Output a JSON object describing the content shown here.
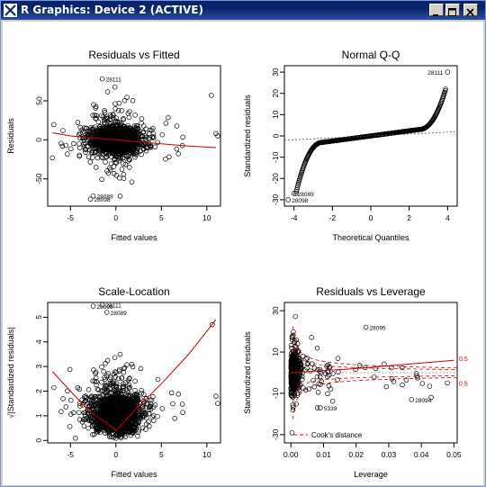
{
  "window": {
    "title": "R Graphics: Device 2 (ACTIVE)",
    "controls": [
      "minimize",
      "maximize",
      "close"
    ]
  },
  "chart_data": [
    {
      "type": "scatter",
      "title": "Residuals vs Fitted",
      "xlabel": "Fitted values",
      "ylabel": "Residuals",
      "xlim": [
        -7.5,
        11.5
      ],
      "ylim": [
        -85,
        95
      ],
      "xticks": [
        -5,
        0,
        5,
        10
      ],
      "yticks": [
        -50,
        0,
        50
      ],
      "smoother": [
        [
          -7,
          9
        ],
        [
          -5,
          5
        ],
        [
          -2,
          2
        ],
        [
          0,
          0
        ],
        [
          2,
          -2
        ],
        [
          5,
          -5
        ],
        [
          8,
          -8
        ],
        [
          11,
          -10
        ]
      ],
      "labeled_points": [
        {
          "label": "28111",
          "x": -1.5,
          "y": 78
        },
        {
          "label": "28089",
          "x": -2.5,
          "y": -72
        },
        {
          "label": "28098",
          "x": -2.8,
          "y": -76
        }
      ]
    },
    {
      "type": "scatter",
      "title": "Normal Q-Q",
      "xlabel": "Theoretical Quantiles",
      "ylabel": "Standardized residuals",
      "xlim": [
        -4.5,
        4.5
      ],
      "ylim": [
        -33,
        33
      ],
      "xticks": [
        -4,
        -2,
        0,
        2,
        4
      ],
      "yticks": [
        -30,
        -20,
        -10,
        0,
        10,
        20,
        30
      ],
      "reference_line": [
        [
          -4.5,
          -2
        ],
        [
          4.5,
          2
        ]
      ],
      "labeled_points": [
        {
          "label": "28111",
          "x": 4.0,
          "y": 30
        },
        {
          "label": "28089",
          "x": -4.0,
          "y": -27
        },
        {
          "label": "28098",
          "x": -4.3,
          "y": -30
        }
      ]
    },
    {
      "type": "scatter",
      "title": "Scale-Location",
      "xlabel": "Fitted values",
      "ylabel": "√|Standardized residuals|",
      "xlim": [
        -7.5,
        11.5
      ],
      "ylim": [
        -0.1,
        5.6
      ],
      "xticks": [
        -5,
        0,
        5,
        10
      ],
      "yticks": [
        0,
        1,
        2,
        3,
        4,
        5
      ],
      "smoother": [
        [
          -7,
          2.8
        ],
        [
          -5,
          2.0
        ],
        [
          -3,
          1.2
        ],
        [
          -1,
          0.7
        ],
        [
          0,
          0.4
        ],
        [
          2,
          1.2
        ],
        [
          5,
          2.3
        ],
        [
          8,
          3.5
        ],
        [
          11,
          4.9
        ]
      ],
      "labeled_points": [
        {
          "label": "28111",
          "x": -1.5,
          "y": 5.5
        },
        {
          "label": "28098",
          "x": -2.5,
          "y": 5.45
        },
        {
          "label": "28089",
          "x": -1.0,
          "y": 5.2
        }
      ]
    },
    {
      "type": "scatter",
      "title": "Residuals vs Leverage",
      "xlabel": "Leverage",
      "ylabel": "Standardized residuals",
      "xlim": [
        -0.002,
        0.051
      ],
      "ylim": [
        -34,
        34
      ],
      "xticks": [
        0.0,
        0.01,
        0.02,
        0.03,
        0.04,
        0.05
      ],
      "xticklabels": [
        "0.00",
        "0.01",
        "0.02",
        "0.03",
        "0.04",
        "0.05"
      ],
      "yticks": [
        -30,
        -10,
        10,
        30
      ],
      "contour_labels": [
        "0.5",
        "0.5"
      ],
      "legend": "Cook's distance",
      "labeled_points": [
        {
          "label": "28095",
          "x": 0.023,
          "y": 22
        },
        {
          "label": "28094",
          "x": 0.037,
          "y": -13
        },
        {
          "label": "5339",
          "x": 0.009,
          "y": -17
        }
      ]
    }
  ]
}
